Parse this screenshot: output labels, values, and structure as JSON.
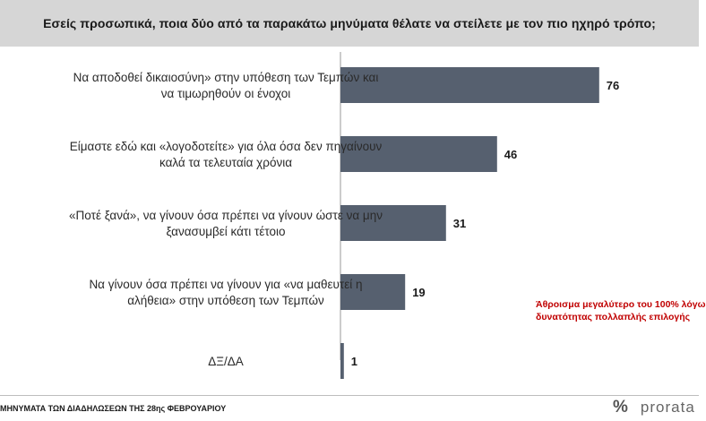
{
  "header": {
    "title": "Εσείς προσωπικά, ποια δύο από τα παρακάτω μηνύματα θέλατε να στείλετε με τον πιο ηχηρό τρόπο;"
  },
  "chart_data": {
    "type": "bar",
    "orientation": "horizontal",
    "title": "Εσείς προσωπικά, ποια δύο από τα παρακάτω μηνύματα θέλατε να στείλετε με τον πιο ηχηρό τρόπο;",
    "categories": [
      [
        "Να αποδοθεί δικαιοσύνη» στην υπόθεση των Τεμπών και",
        "να τιμωρηθούν οι ένοχοι"
      ],
      [
        "Είμαστε εδώ και «λογοδοτείτε» για όλα όσα δεν πηγαίνουν",
        "καλά τα τελευταία χρόνια"
      ],
      [
        "«Ποτέ ξανά», να γίνουν όσα πρέπει να γίνουν ώστε να μην",
        "ξανασυμβεί κάτι τέτοιο"
      ],
      [
        "Να γίνουν όσα πρέπει να γίνουν για «να μαθευτεί η",
        "αλήθεια» στην υπόθεση των Τεμπών"
      ],
      [
        "ΔΞ/ΔΑ"
      ]
    ],
    "values": [
      76,
      46,
      31,
      19,
      1
    ],
    "xlim": [
      0,
      100
    ],
    "bar_color": "#56606f",
    "grid": false,
    "legend": "none"
  },
  "note": {
    "line1": "Άθροισμα μεγαλύτερο του 100% λόγω",
    "line2": "δυνατότητας πολλαπλής επιλογής",
    "color": "#c00000"
  },
  "footer": {
    "source": "ΜΗΝΥΜΑΤΑ ΤΩΝ ΔΙΑΔΗΛΩΣΕΩΝ ΤΗΣ 28ης ΦΕΒΡΟΥΑΡΙΟΥ",
    "brand_mark": "%",
    "brand_name": "prorata"
  }
}
